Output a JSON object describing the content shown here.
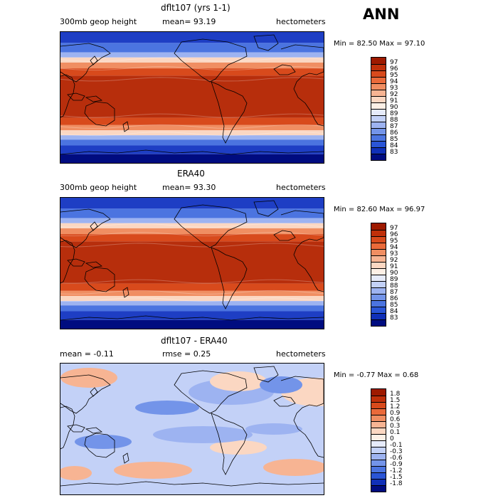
{
  "season": "ANN",
  "panels": [
    {
      "title": "dflt107 (yrs 1-1)",
      "left_label": "300mb geop height",
      "center_label": "mean=  93.19",
      "right_label": "hectometers",
      "minmax": "Min =  82.50 Max =  97.10",
      "colorbar_labels": [
        "97",
        "96",
        "95",
        "94",
        "93",
        "92",
        "91",
        "90",
        "89",
        "88",
        "87",
        "86",
        "85",
        "84",
        "83"
      ],
      "colorbar_colors": [
        "#9e1a00",
        "#c0300a",
        "#d84a1c",
        "#ea6a3a",
        "#f08e62",
        "#f7b493",
        "#fbd7c2",
        "#fdf0e6",
        "#e6ebfa",
        "#c3d1f7",
        "#9db3f1",
        "#7394e9",
        "#4b74e0",
        "#2a55d6",
        "#1030b8",
        "#000c80"
      ],
      "background": {
        "type": "zonal_bands",
        "bands": [
          {
            "lat_top": 90,
            "lat_bottom": 75,
            "color": "#1e3ec4"
          },
          {
            "lat_top": 75,
            "lat_bottom": 62,
            "color": "#4b74e0"
          },
          {
            "lat_top": 62,
            "lat_bottom": 55,
            "color": "#9db3f1"
          },
          {
            "lat_top": 55,
            "lat_bottom": 48,
            "color": "#fbd7c2"
          },
          {
            "lat_top": 48,
            "lat_bottom": 40,
            "color": "#f08e62"
          },
          {
            "lat_top": 40,
            "lat_bottom": 30,
            "color": "#d84a1c"
          },
          {
            "lat_top": 30,
            "lat_bottom": -28,
            "color": "#b72e0c"
          },
          {
            "lat_top": -28,
            "lat_bottom": -38,
            "color": "#d84a1c"
          },
          {
            "lat_top": -38,
            "lat_bottom": -45,
            "color": "#f08e62"
          },
          {
            "lat_top": -45,
            "lat_bottom": -52,
            "color": "#fbd7c2"
          },
          {
            "lat_top": -52,
            "lat_bottom": -58,
            "color": "#9db3f1"
          },
          {
            "lat_top": -58,
            "lat_bottom": -66,
            "color": "#4b74e0"
          },
          {
            "lat_top": -66,
            "lat_bottom": -78,
            "color": "#1e3ec4"
          },
          {
            "lat_top": -78,
            "lat_bottom": -90,
            "color": "#000c80"
          }
        ]
      }
    },
    {
      "title": "ERA40",
      "left_label": "300mb geop height",
      "center_label": "mean=  93.30",
      "right_label": "hectometers",
      "minmax": "Min =  82.60 Max =  96.97",
      "colorbar_labels": [
        "97",
        "96",
        "95",
        "94",
        "93",
        "92",
        "91",
        "90",
        "89",
        "88",
        "87",
        "86",
        "85",
        "84",
        "83"
      ],
      "colorbar_colors": [
        "#9e1a00",
        "#c0300a",
        "#d84a1c",
        "#ea6a3a",
        "#f08e62",
        "#f7b493",
        "#fbd7c2",
        "#fdf0e6",
        "#e6ebfa",
        "#c3d1f7",
        "#9db3f1",
        "#7394e9",
        "#4b74e0",
        "#2a55d6",
        "#1030b8",
        "#000c80"
      ],
      "background": {
        "type": "zonal_bands",
        "bands": [
          {
            "lat_top": 90,
            "lat_bottom": 75,
            "color": "#1e3ec4"
          },
          {
            "lat_top": 75,
            "lat_bottom": 62,
            "color": "#4b74e0"
          },
          {
            "lat_top": 62,
            "lat_bottom": 55,
            "color": "#9db3f1"
          },
          {
            "lat_top": 55,
            "lat_bottom": 48,
            "color": "#fbd7c2"
          },
          {
            "lat_top": 48,
            "lat_bottom": 40,
            "color": "#f08e62"
          },
          {
            "lat_top": 40,
            "lat_bottom": 30,
            "color": "#d84a1c"
          },
          {
            "lat_top": 30,
            "lat_bottom": -28,
            "color": "#b72e0c"
          },
          {
            "lat_top": -28,
            "lat_bottom": -38,
            "color": "#d84a1c"
          },
          {
            "lat_top": -38,
            "lat_bottom": -45,
            "color": "#f08e62"
          },
          {
            "lat_top": -45,
            "lat_bottom": -52,
            "color": "#fbd7c2"
          },
          {
            "lat_top": -52,
            "lat_bottom": -58,
            "color": "#9db3f1"
          },
          {
            "lat_top": -58,
            "lat_bottom": -66,
            "color": "#4b74e0"
          },
          {
            "lat_top": -66,
            "lat_bottom": -78,
            "color": "#1e3ec4"
          },
          {
            "lat_top": -78,
            "lat_bottom": -90,
            "color": "#000c80"
          }
        ]
      }
    },
    {
      "title": "dflt107 - ERA40",
      "left_label": "mean =  -0.11",
      "center_label": "rmse =   0.25",
      "right_label": "hectometers",
      "minmax": "Min =  -0.77 Max =   0.68",
      "colorbar_labels": [
        "1.8",
        "1.5",
        "1.2",
        "0.9",
        "0.6",
        "0.3",
        "0.1",
        "0",
        "-0.1",
        "-0.3",
        "-0.6",
        "-0.9",
        "-1.2",
        "-1.5",
        "-1.8"
      ],
      "colorbar_colors": [
        "#9e1a00",
        "#c0300a",
        "#d84a1c",
        "#ea6a3a",
        "#f08e62",
        "#f7b493",
        "#fbd7c2",
        "#fdf0e6",
        "#e6ebfa",
        "#c3d1f7",
        "#9db3f1",
        "#7394e9",
        "#4b74e0",
        "#2a55d6",
        "#1030b8",
        "#000c80"
      ],
      "background": {
        "type": "anomaly",
        "base_color": "#c3d1f7",
        "warm_color": "#f7b493",
        "warm2_color": "#fbd7c2",
        "cool_color": "#9db3f1",
        "cool2_color": "#7394e9"
      }
    }
  ]
}
